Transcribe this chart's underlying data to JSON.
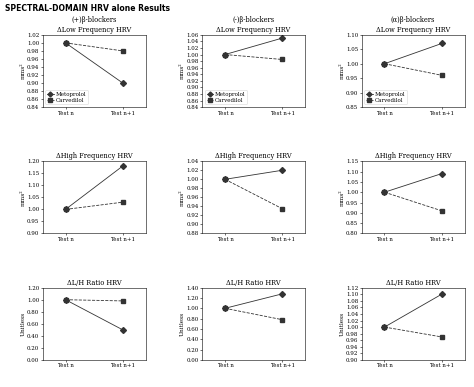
{
  "title": "SPECTRAL-DOMAIN HRV alone Results",
  "columns": [
    {
      "col_title": "(+)β-blockers",
      "panels": [
        {
          "subtitle": "ΔLow Frequency HRV",
          "ylabel": "mms²",
          "ylim": [
            0.84,
            1.02
          ],
          "yticks": [
            0.84,
            0.86,
            0.88,
            0.9,
            0.92,
            0.94,
            0.96,
            0.98,
            1.0,
            1.02
          ],
          "metoprolol": [
            1.0,
            0.9
          ],
          "carvedilol": [
            1.0,
            0.98
          ],
          "show_legend": true
        },
        {
          "subtitle": "ΔHigh Frequency HRV",
          "ylabel": "mms²",
          "ylim": [
            0.9,
            1.2
          ],
          "yticks": [
            0.9,
            0.95,
            1.0,
            1.05,
            1.1,
            1.15,
            1.2
          ],
          "metoprolol": [
            1.0,
            1.18
          ],
          "carvedilol": [
            1.0,
            1.03
          ],
          "show_legend": false
        },
        {
          "subtitle": "ΔL/H Ratio HRV",
          "ylabel": "Unitless",
          "ylim": [
            0.0,
            1.2
          ],
          "yticks": [
            0.0,
            0.2,
            0.4,
            0.6,
            0.8,
            1.0,
            1.2
          ],
          "metoprolol": [
            1.0,
            0.5
          ],
          "carvedilol": [
            1.0,
            0.98
          ],
          "show_legend": false
        }
      ]
    },
    {
      "col_title": "(-)β-blockers",
      "panels": [
        {
          "subtitle": "ΔLow Frequency HRV",
          "ylabel": "mms²",
          "ylim": [
            0.84,
            1.06
          ],
          "yticks": [
            0.84,
            0.86,
            0.88,
            0.9,
            0.92,
            0.94,
            0.96,
            0.98,
            1.0,
            1.02,
            1.04,
            1.06
          ],
          "metoprolol": [
            1.0,
            1.05
          ],
          "carvedilol": [
            1.0,
            0.985
          ],
          "show_legend": true
        },
        {
          "subtitle": "ΔHigh Frequency HRV",
          "ylabel": "mms²",
          "ylim": [
            0.88,
            1.04
          ],
          "yticks": [
            0.88,
            0.9,
            0.92,
            0.94,
            0.96,
            0.98,
            1.0,
            1.02,
            1.04
          ],
          "metoprolol": [
            1.0,
            1.02
          ],
          "carvedilol": [
            1.0,
            0.935
          ],
          "show_legend": false
        },
        {
          "subtitle": "ΔL/H Ratio HRV",
          "ylabel": "Unitless",
          "ylim": [
            0.0,
            1.4
          ],
          "yticks": [
            0.0,
            0.2,
            0.4,
            0.6,
            0.8,
            1.0,
            1.2,
            1.4
          ],
          "metoprolol": [
            1.0,
            1.28
          ],
          "carvedilol": [
            1.0,
            0.78
          ],
          "show_legend": false
        }
      ]
    },
    {
      "col_title": "(α)β-blockers",
      "panels": [
        {
          "subtitle": "ΔLow Frequency HRV",
          "ylabel": "mms²",
          "ylim": [
            0.85,
            1.1
          ],
          "yticks": [
            0.85,
            0.9,
            0.95,
            1.0,
            1.05,
            1.1
          ],
          "metoprolol": [
            1.0,
            1.07
          ],
          "carvedilol": [
            1.0,
            0.96
          ],
          "show_legend": true
        },
        {
          "subtitle": "ΔHigh Frequency HRV",
          "ylabel": "mms²",
          "ylim": [
            0.8,
            1.15
          ],
          "yticks": [
            0.8,
            0.85,
            0.9,
            0.95,
            1.0,
            1.05,
            1.1,
            1.15
          ],
          "metoprolol": [
            1.0,
            1.09
          ],
          "carvedilol": [
            1.0,
            0.91
          ],
          "show_legend": false
        },
        {
          "subtitle": "ΔL/H Ratio HRV",
          "ylabel": "Unitless",
          "ylim": [
            0.9,
            1.12
          ],
          "yticks": [
            0.9,
            0.92,
            0.94,
            0.96,
            0.98,
            1.0,
            1.02,
            1.04,
            1.06,
            1.08,
            1.1,
            1.12
          ],
          "metoprolol": [
            1.0,
            1.1
          ],
          "carvedilol": [
            1.0,
            0.97
          ],
          "show_legend": false
        }
      ]
    }
  ],
  "xtick_labels": [
    "Test n",
    "Test n+1"
  ],
  "legend_labels": [
    "Metoprolol",
    "Carvedilol"
  ],
  "line_color": "#333333",
  "marker_metoprolol": "D",
  "marker_carvedilol": "s",
  "marker_size": 3,
  "fontsize_title": 5.5,
  "fontsize_col_title": 5.0,
  "fontsize_subtitle": 4.8,
  "fontsize_tick": 4.0,
  "fontsize_ylabel": 4.2,
  "fontsize_legend": 4.0,
  "linewidth": 0.6
}
